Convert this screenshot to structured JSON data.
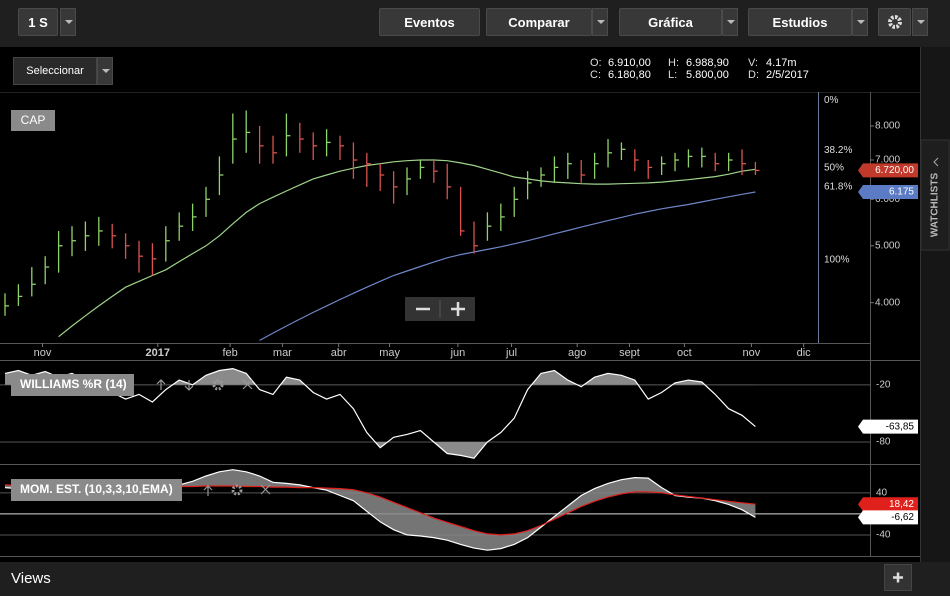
{
  "toolbar": {
    "interval": "1 S",
    "buttons": [
      "Eventos",
      "Comparar",
      "Gráfica",
      "Estudios"
    ]
  },
  "selector": "Seleccionar",
  "quote": [
    {
      "label": "O:",
      "value": "6.910,00"
    },
    {
      "label": "H:",
      "value": "6.988,90"
    },
    {
      "label": "V:",
      "value": "4.17m"
    },
    {
      "label": "C:",
      "value": "6.180,80"
    },
    {
      "label": "L:",
      "value": "5.800,00"
    },
    {
      "label": "D:",
      "value": "2/5/2017"
    }
  ],
  "price_chart": {
    "type": "ohlc",
    "label": "CAP",
    "log_scale": true,
    "ylim": [
      3415,
      9140
    ],
    "yticks": [
      {
        "value": 4000,
        "label": "4.000"
      },
      {
        "value": 5000,
        "label": "5.000"
      },
      {
        "value": 6000,
        "label": "6.000"
      },
      {
        "value": 7000,
        "label": "7.000"
      },
      {
        "value": 8000,
        "label": "8.000"
      }
    ],
    "xlim": [
      0,
      64.55
    ],
    "xticks": [
      {
        "value": 2.8,
        "label": "nov"
      },
      {
        "value": 11.4,
        "label": "2017"
      },
      {
        "value": 16.8,
        "label": "feb"
      },
      {
        "value": 20.7,
        "label": "mar"
      },
      {
        "value": 24.9,
        "label": "abr"
      },
      {
        "value": 28.7,
        "label": "may"
      },
      {
        "value": 33.8,
        "label": "jun"
      },
      {
        "value": 37.8,
        "label": "jul"
      },
      {
        "value": 42.7,
        "label": "ago"
      },
      {
        "value": 46.6,
        "label": "sept"
      },
      {
        "value": 50.7,
        "label": "oct"
      },
      {
        "value": 55.7,
        "label": "nov"
      },
      {
        "value": 59.6,
        "label": "dic"
      }
    ],
    "up_color": "#8fd16a",
    "down_color": "#d9534f",
    "high": [
      4150,
      4300,
      4600,
      4800,
      5300,
      5400,
      5500,
      5600,
      5450,
      5250,
      5100,
      5050,
      5400,
      5700,
      5900,
      6300,
      7100,
      8400,
      8500,
      8000,
      7700,
      8400,
      8100,
      7800,
      7900,
      7700,
      7500,
      7200,
      6900,
      6700,
      6800,
      7000,
      7000,
      6900,
      6300,
      5500,
      5700,
      5900,
      6300,
      6700,
      6800,
      7100,
      7200,
      7000,
      7200,
      7600,
      7500,
      7300,
      7000,
      7100,
      7200,
      7300,
      7350,
      7200,
      7200,
      7300,
      6950
    ],
    "low": [
      3800,
      3950,
      4100,
      4300,
      4500,
      4800,
      4900,
      5000,
      4950,
      4750,
      4500,
      4450,
      4700,
      5100,
      5300,
      5600,
      6100,
      6900,
      7200,
      6900,
      6900,
      7100,
      7200,
      7000,
      7100,
      7000,
      6500,
      6300,
      6200,
      5900,
      6100,
      6500,
      6400,
      6000,
      5200,
      4850,
      5100,
      5300,
      5600,
      6000,
      6300,
      6400,
      6500,
      6400,
      6500,
      6800,
      7000,
      6700,
      6500,
      6600,
      6700,
      6800,
      6800,
      6700,
      6700,
      6600,
      6600
    ],
    "close": [
      3950,
      4100,
      4300,
      4600,
      5000,
      5100,
      5200,
      5300,
      5200,
      5000,
      4800,
      4750,
      5100,
      5400,
      5600,
      6000,
      6600,
      7600,
      7800,
      7400,
      7200,
      7700,
      7600,
      7400,
      7500,
      7400,
      7000,
      6900,
      6600,
      6300,
      6500,
      6800,
      6700,
      6300,
      5300,
      5000,
      5400,
      5600,
      6000,
      6400,
      6600,
      6800,
      6900,
      6600,
      6900,
      7200,
      7300,
      7000,
      6800,
      6900,
      7000,
      7100,
      7100,
      6900,
      7000,
      6900,
      6720
    ],
    "series": [
      {
        "color": "#9fd38a",
        "values": [
          null,
          null,
          null,
          null,
          3500,
          3650,
          3800,
          3950,
          4100,
          4250,
          4350,
          4450,
          4550,
          4700,
          4850,
          5000,
          5200,
          5450,
          5700,
          5900,
          6050,
          6200,
          6350,
          6500,
          6600,
          6700,
          6780,
          6850,
          6900,
          6950,
          6980,
          7000,
          7000,
          6980,
          6920,
          6850,
          6750,
          6650,
          6550,
          6500,
          6450,
          6420,
          6400,
          6380,
          6370,
          6370,
          6380,
          6390,
          6400,
          6420,
          6450,
          6480,
          6520,
          6560,
          6620,
          6700,
          6750
        ]
      },
      {
        "color": "#6f86c9",
        "values": [
          null,
          null,
          null,
          null,
          null,
          null,
          null,
          null,
          null,
          null,
          null,
          null,
          null,
          null,
          null,
          null,
          null,
          null,
          null,
          3450,
          3550,
          3650,
          3750,
          3850,
          3950,
          4050,
          4150,
          4250,
          4350,
          4450,
          4530,
          4610,
          4690,
          4770,
          4830,
          4880,
          4930,
          4980,
          5040,
          5100,
          5170,
          5240,
          5310,
          5380,
          5450,
          5520,
          5590,
          5660,
          5720,
          5780,
          5830,
          5880,
          5940,
          6000,
          6060,
          6120,
          6175
        ]
      }
    ],
    "fibonacci": {
      "high": 8850,
      "low": 4730,
      "levels": [
        0,
        38.2,
        50,
        61.8,
        100
      ],
      "labels": [
        "0%",
        "38.2%",
        "50%",
        "61.8%",
        "100%"
      ]
    },
    "tags": [
      {
        "value": 6720,
        "label": "6.720,00",
        "color": "#c0392b"
      },
      {
        "value": 6175,
        "label": "6.175",
        "color": "#5b7bc4"
      }
    ]
  },
  "williams": {
    "type": "line",
    "label": "WILLIAMS %R (14)",
    "ylim": [
      -102,
      5
    ],
    "yticks": [
      -20,
      -80
    ],
    "color": "#ffffff",
    "shade_color": "#8a8a8a",
    "values": [
      -8,
      -5,
      -10,
      -6,
      -12,
      -8,
      -15,
      -22,
      -28,
      -35,
      -30,
      -38,
      -25,
      -15,
      -20,
      -10,
      -5,
      -3,
      -8,
      -25,
      -30,
      -12,
      -15,
      -28,
      -35,
      -30,
      -45,
      -70,
      -86,
      -75,
      -72,
      -68,
      -80,
      -92,
      -94,
      -97,
      -80,
      -70,
      -55,
      -25,
      -8,
      -5,
      -15,
      -22,
      -12,
      -8,
      -10,
      -15,
      -35,
      -28,
      -18,
      -15,
      -17,
      -30,
      -45,
      -52,
      -63.85
    ],
    "tags": [
      {
        "value": -63.85,
        "label": "-63,85",
        "color": "#ffffff"
      }
    ]
  },
  "momentum": {
    "type": "line",
    "label": "MOM. EST. (10,3,3,10,EMA)",
    "ylim": [
      -80,
      91
    ],
    "yticks": [
      40,
      -40
    ],
    "shade_color": "#8a8a8a",
    "series": [
      {
        "color": "#ffffff",
        "values": [
          50,
          48,
          50,
          52,
          48,
          46,
          48,
          50,
          46,
          44,
          46,
          44,
          48,
          55,
          62,
          72,
          80,
          84,
          80,
          72,
          60,
          58,
          55,
          50,
          45,
          35,
          25,
          5,
          -15,
          -30,
          -40,
          -42,
          -45,
          -50,
          -58,
          -65,
          -69,
          -66,
          -58,
          -45,
          -25,
          -5,
          15,
          35,
          48,
          58,
          65,
          69,
          68,
          50,
          35,
          32,
          30,
          25,
          18,
          8,
          -6.62
        ]
      },
      {
        "color": "#e0201b",
        "values": [
          55,
          54,
          54,
          53,
          53,
          52,
          52,
          52,
          52,
          51,
          51,
          51,
          51,
          52,
          52,
          53,
          53,
          53,
          52,
          52,
          51,
          51,
          50,
          50,
          49,
          48,
          46,
          40,
          32,
          22,
          12,
          2,
          -8,
          -16,
          -24,
          -32,
          -38,
          -40,
          -38,
          -32,
          -22,
          -10,
          2,
          14,
          24,
          32,
          38,
          42,
          42,
          40,
          36,
          33,
          30,
          27,
          24,
          21,
          18.42
        ]
      }
    ],
    "tags": [
      {
        "value": 18.42,
        "label": "18,42",
        "color": "#e0201b"
      },
      {
        "value": -6.62,
        "label": "-6,62",
        "color": "#ffffff"
      }
    ]
  },
  "footer": {
    "views": "Views"
  },
  "sidebar": {
    "tab": "WATCHLISTS"
  }
}
